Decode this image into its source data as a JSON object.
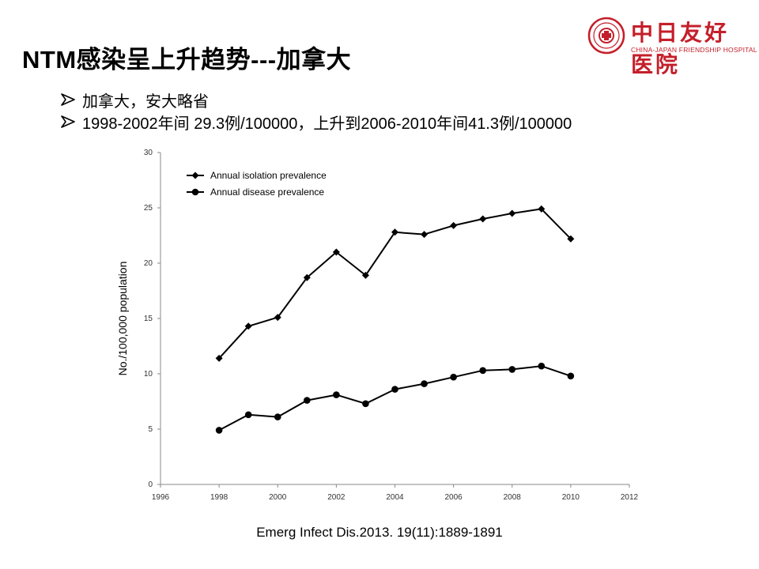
{
  "slide": {
    "title": "NTM感染呈上升趋势---加拿大",
    "bullets": [
      "加拿大，安大略省",
      "1998-2002年间 29.3例/100000，上升到2006-2010年间41.3例/100000"
    ],
    "citation": "Emerg Infect Dis.2013. 19(11):1889-1891"
  },
  "logo": {
    "name_cn": "中日友好医院",
    "name_en": "CHINA-JAPAN FRIENDSHIP HOSPITAL",
    "color": "#c41f2a"
  },
  "chart_data": {
    "type": "line",
    "title": "",
    "xlabel": "",
    "ylabel": "No./100,000 population",
    "xlim": [
      1996,
      2012
    ],
    "ylim": [
      0,
      30
    ],
    "xticks": [
      1996,
      1998,
      2000,
      2002,
      2004,
      2006,
      2008,
      2010,
      2012
    ],
    "yticks": [
      0,
      5,
      10,
      15,
      20,
      25,
      30
    ],
    "grid": false,
    "legend_position": "top-left",
    "x": [
      1998,
      1999,
      2000,
      2001,
      2002,
      2003,
      2004,
      2005,
      2006,
      2007,
      2008,
      2009,
      2010
    ],
    "series": [
      {
        "name": "Annual isolation prevalence",
        "marker": "diamond",
        "values": [
          11.4,
          14.3,
          15.1,
          18.7,
          21.0,
          18.9,
          22.8,
          22.6,
          23.4,
          24.0,
          24.5,
          24.9,
          22.2
        ]
      },
      {
        "name": "Annual disease prevalence",
        "marker": "circle",
        "values": [
          4.9,
          6.3,
          6.1,
          7.6,
          8.1,
          7.3,
          8.6,
          9.1,
          9.7,
          10.3,
          10.4,
          10.7,
          9.8
        ]
      }
    ]
  }
}
